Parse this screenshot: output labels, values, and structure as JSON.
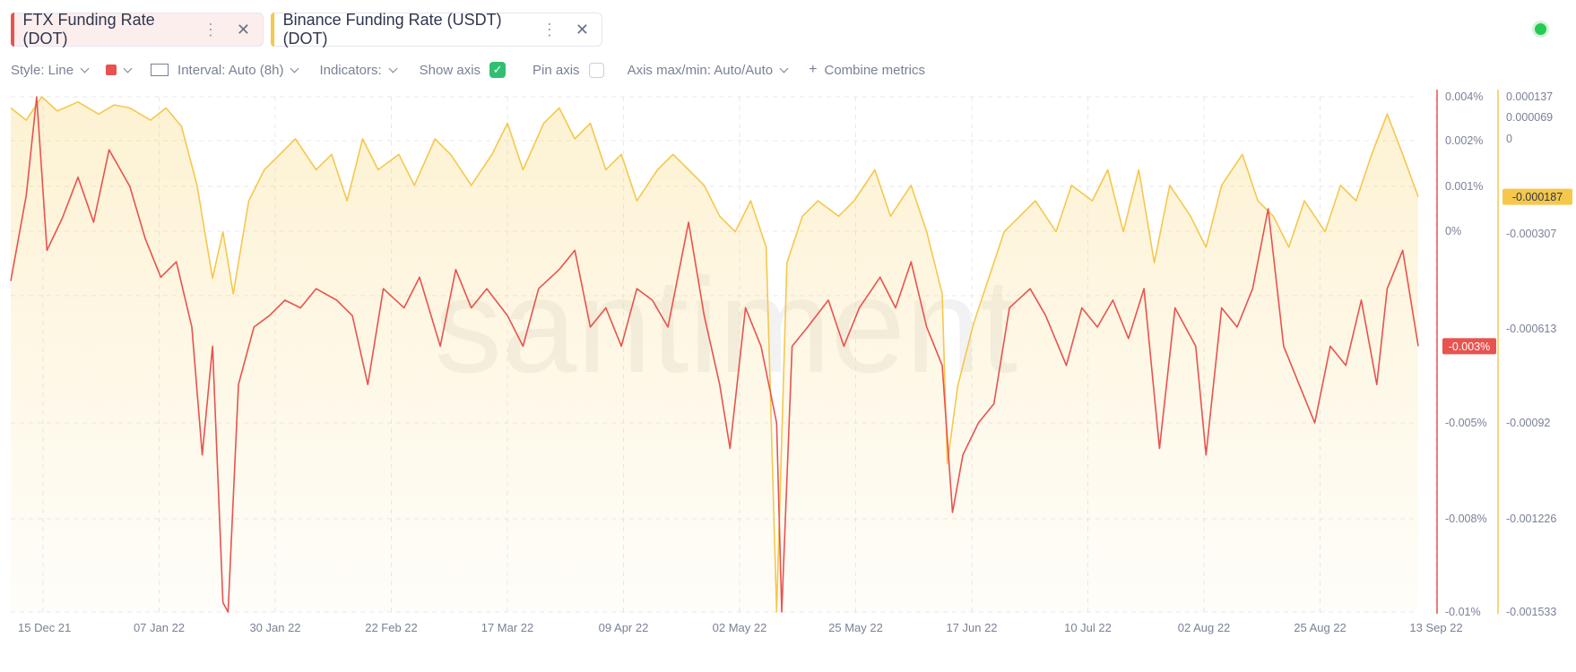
{
  "tabs": [
    {
      "label": "FTX Funding Rate (DOT)",
      "color": "#e8534f"
    },
    {
      "label": "Binance Funding Rate (USDT) (DOT)",
      "color": "#f5c84c"
    }
  ],
  "toolbar": {
    "style": "Style: Line",
    "interval": "Interval: Auto (8h)",
    "indicators": "Indicators:",
    "show_axis": "Show axis",
    "show_axis_checked": true,
    "pin_axis": "Pin axis",
    "pin_axis_checked": false,
    "axis_maxmin": "Axis max/min: Auto/Auto",
    "combine": "Combine metrics"
  },
  "watermark": "santiment",
  "chart_data": {
    "type": "line",
    "x_ticks": [
      "15 Dec 21",
      "07 Jan 22",
      "30 Jan 22",
      "22 Feb 22",
      "17 Mar 22",
      "09 Apr 22",
      "02 May 22",
      "25 May 22",
      "17 Jun 22",
      "10 Jul 22",
      "02 Aug 22",
      "25 Aug 22",
      "13 Sep 22"
    ],
    "x_range": [
      "2021-12-15",
      "2022-09-13"
    ],
    "y_left": {
      "ticks": [
        "0.004%",
        "0.002%",
        "0.001%",
        "0%",
        "-0.005%",
        "-0.008%",
        "-0.01%"
      ],
      "current": "-0.003%",
      "color": "#e8534f"
    },
    "y_right": {
      "ticks": [
        "0.000137",
        "0.000069",
        "0",
        "-0.000307",
        "-0.000613",
        "-0.00092",
        "-0.001226",
        "-0.001533"
      ],
      "current": "-0.000187",
      "color": "#f5c84c"
    },
    "series": [
      {
        "name": "FTX Funding Rate (DOT)",
        "color": "#e8534f",
        "unit": "%",
        "values": [
          [
            "2021-12-15",
            -0.0013
          ],
          [
            "2021-12-18",
            0.0008
          ],
          [
            "2021-12-20",
            0.004
          ],
          [
            "2021-12-22",
            -0.0005
          ],
          [
            "2021-12-25",
            0.0003
          ],
          [
            "2021-12-28",
            0.0012
          ],
          [
            "2021-12-31",
            0.0002
          ],
          [
            "2022-01-03",
            0.0018
          ],
          [
            "2022-01-07",
            0.001
          ],
          [
            "2022-01-10",
            -0.0002
          ],
          [
            "2022-01-13",
            -0.0012
          ],
          [
            "2022-01-16",
            -0.0008
          ],
          [
            "2022-01-19",
            -0.0025
          ],
          [
            "2022-01-21",
            -0.006
          ],
          [
            "2022-01-23",
            -0.003
          ],
          [
            "2022-01-25",
            -0.0098
          ],
          [
            "2022-01-26",
            -0.0115
          ],
          [
            "2022-01-28",
            -0.004
          ],
          [
            "2022-01-31",
            -0.0025
          ],
          [
            "2022-02-03",
            -0.0022
          ],
          [
            "2022-02-06",
            -0.0018
          ],
          [
            "2022-02-09",
            -0.002
          ],
          [
            "2022-02-12",
            -0.0015
          ],
          [
            "2022-02-16",
            -0.0018
          ],
          [
            "2022-02-19",
            -0.0022
          ],
          [
            "2022-02-22",
            -0.004
          ],
          [
            "2022-02-25",
            -0.0015
          ],
          [
            "2022-03-01",
            -0.002
          ],
          [
            "2022-03-04",
            -0.0012
          ],
          [
            "2022-03-08",
            -0.003
          ],
          [
            "2022-03-11",
            -0.001
          ],
          [
            "2022-03-14",
            -0.002
          ],
          [
            "2022-03-17",
            -0.0015
          ],
          [
            "2022-03-21",
            -0.0022
          ],
          [
            "2022-03-24",
            -0.003
          ],
          [
            "2022-03-27",
            -0.0015
          ],
          [
            "2022-03-31",
            -0.001
          ],
          [
            "2022-04-03",
            -0.0005
          ],
          [
            "2022-04-06",
            -0.0025
          ],
          [
            "2022-04-09",
            -0.002
          ],
          [
            "2022-04-12",
            -0.003
          ],
          [
            "2022-04-15",
            -0.0015
          ],
          [
            "2022-04-18",
            -0.0018
          ],
          [
            "2022-04-21",
            -0.0025
          ],
          [
            "2022-04-25",
            0.0002
          ],
          [
            "2022-04-28",
            -0.0022
          ],
          [
            "2022-05-01",
            -0.004
          ],
          [
            "2022-05-03",
            -0.0058
          ],
          [
            "2022-05-06",
            -0.002
          ],
          [
            "2022-05-09",
            -0.003
          ],
          [
            "2022-05-12",
            -0.005
          ],
          [
            "2022-05-13",
            -0.0108
          ],
          [
            "2022-05-15",
            -0.003
          ],
          [
            "2022-05-18",
            -0.0025
          ],
          [
            "2022-05-22",
            -0.0018
          ],
          [
            "2022-05-25",
            -0.003
          ],
          [
            "2022-05-28",
            -0.002
          ],
          [
            "2022-06-01",
            -0.0012
          ],
          [
            "2022-06-04",
            -0.002
          ],
          [
            "2022-06-07",
            -0.0008
          ],
          [
            "2022-06-10",
            -0.0025
          ],
          [
            "2022-06-13",
            -0.0035
          ],
          [
            "2022-06-15",
            -0.0078
          ],
          [
            "2022-06-17",
            -0.006
          ],
          [
            "2022-06-20",
            -0.005
          ],
          [
            "2022-06-23",
            -0.0045
          ],
          [
            "2022-06-26",
            -0.002
          ],
          [
            "2022-06-30",
            -0.0015
          ],
          [
            "2022-07-03",
            -0.0022
          ],
          [
            "2022-07-07",
            -0.0035
          ],
          [
            "2022-07-10",
            -0.002
          ],
          [
            "2022-07-13",
            -0.0025
          ],
          [
            "2022-07-16",
            -0.0018
          ],
          [
            "2022-07-19",
            -0.0028
          ],
          [
            "2022-07-22",
            -0.0015
          ],
          [
            "2022-07-25",
            -0.0058
          ],
          [
            "2022-07-28",
            -0.002
          ],
          [
            "2022-08-01",
            -0.003
          ],
          [
            "2022-08-03",
            -0.006
          ],
          [
            "2022-08-06",
            -0.002
          ],
          [
            "2022-08-09",
            -0.0025
          ],
          [
            "2022-08-12",
            -0.0015
          ],
          [
            "2022-08-15",
            0.0005
          ],
          [
            "2022-08-18",
            -0.003
          ],
          [
            "2022-08-21",
            -0.004
          ],
          [
            "2022-08-24",
            -0.005
          ],
          [
            "2022-08-27",
            -0.003
          ],
          [
            "2022-08-30",
            -0.0035
          ],
          [
            "2022-09-02",
            -0.0018
          ],
          [
            "2022-09-05",
            -0.004
          ],
          [
            "2022-09-07",
            -0.0015
          ],
          [
            "2022-09-10",
            -0.0005
          ],
          [
            "2022-09-13",
            -0.003
          ]
        ]
      },
      {
        "name": "Binance Funding Rate (USDT) (DOT)",
        "color": "#f5c84c",
        "unit": "",
        "values": [
          [
            "2021-12-15",
            0.0001
          ],
          [
            "2021-12-18",
            6e-05
          ],
          [
            "2021-12-21",
            0.000137
          ],
          [
            "2021-12-24",
            9e-05
          ],
          [
            "2021-12-28",
            0.00012
          ],
          [
            "2022-01-01",
            8e-05
          ],
          [
            "2022-01-04",
            0.00011
          ],
          [
            "2022-01-07",
            0.0001
          ],
          [
            "2022-01-11",
            6e-05
          ],
          [
            "2022-01-14",
            0.0001
          ],
          [
            "2022-01-17",
            4e-05
          ],
          [
            "2022-01-20",
            -0.00015
          ],
          [
            "2022-01-23",
            -0.00045
          ],
          [
            "2022-01-25",
            -0.0003
          ],
          [
            "2022-01-27",
            -0.0005
          ],
          [
            "2022-01-30",
            -0.0002
          ],
          [
            "2022-02-02",
            -0.0001
          ],
          [
            "2022-02-05",
            -5e-05
          ],
          [
            "2022-02-08",
            0.0
          ],
          [
            "2022-02-12",
            -0.0001
          ],
          [
            "2022-02-15",
            -5e-05
          ],
          [
            "2022-02-18",
            -0.0002
          ],
          [
            "2022-02-21",
            0.0
          ],
          [
            "2022-02-24",
            -0.0001
          ],
          [
            "2022-02-28",
            -5e-05
          ],
          [
            "2022-03-03",
            -0.00015
          ],
          [
            "2022-03-07",
            0.0
          ],
          [
            "2022-03-10",
            -5e-05
          ],
          [
            "2022-03-14",
            -0.00015
          ],
          [
            "2022-03-18",
            -5e-05
          ],
          [
            "2022-03-21",
            5e-05
          ],
          [
            "2022-03-24",
            -0.0001
          ],
          [
            "2022-03-28",
            5e-05
          ],
          [
            "2022-03-31",
            0.0001
          ],
          [
            "2022-04-03",
            0.0
          ],
          [
            "2022-04-06",
            5e-05
          ],
          [
            "2022-04-09",
            -0.0001
          ],
          [
            "2022-04-12",
            -5e-05
          ],
          [
            "2022-04-15",
            -0.0002
          ],
          [
            "2022-04-19",
            -0.0001
          ],
          [
            "2022-04-22",
            -5e-05
          ],
          [
            "2022-04-25",
            -0.0001
          ],
          [
            "2022-04-28",
            -0.00015
          ],
          [
            "2022-05-01",
            -0.00025
          ],
          [
            "2022-05-04",
            -0.0003
          ],
          [
            "2022-05-07",
            -0.0002
          ],
          [
            "2022-05-10",
            -0.00035
          ],
          [
            "2022-05-12",
            -0.001533
          ],
          [
            "2022-05-14",
            -0.0004
          ],
          [
            "2022-05-17",
            -0.00025
          ],
          [
            "2022-05-20",
            -0.0002
          ],
          [
            "2022-05-24",
            -0.00025
          ],
          [
            "2022-05-27",
            -0.0002
          ],
          [
            "2022-05-31",
            -0.0001
          ],
          [
            "2022-06-03",
            -0.00025
          ],
          [
            "2022-06-07",
            -0.00015
          ],
          [
            "2022-06-10",
            -0.0003
          ],
          [
            "2022-06-13",
            -0.0005
          ],
          [
            "2022-06-14",
            -0.00105
          ],
          [
            "2022-06-16",
            -0.0008
          ],
          [
            "2022-06-19",
            -0.0006
          ],
          [
            "2022-06-22",
            -0.00045
          ],
          [
            "2022-06-25",
            -0.0003
          ],
          [
            "2022-06-28",
            -0.00025
          ],
          [
            "2022-07-01",
            -0.0002
          ],
          [
            "2022-07-05",
            -0.0003
          ],
          [
            "2022-07-08",
            -0.00015
          ],
          [
            "2022-07-12",
            -0.0002
          ],
          [
            "2022-07-15",
            -0.0001
          ],
          [
            "2022-07-18",
            -0.0003
          ],
          [
            "2022-07-21",
            -0.0001
          ],
          [
            "2022-07-24",
            -0.0004
          ],
          [
            "2022-07-27",
            -0.00015
          ],
          [
            "2022-07-31",
            -0.00025
          ],
          [
            "2022-08-03",
            -0.00035
          ],
          [
            "2022-08-06",
            -0.00015
          ],
          [
            "2022-08-10",
            -5e-05
          ],
          [
            "2022-08-13",
            -0.0002
          ],
          [
            "2022-08-16",
            -0.00025
          ],
          [
            "2022-08-19",
            -0.00035
          ],
          [
            "2022-08-22",
            -0.0002
          ],
          [
            "2022-08-26",
            -0.0003
          ],
          [
            "2022-08-29",
            -0.00015
          ],
          [
            "2022-09-01",
            -0.0002
          ],
          [
            "2022-09-04",
            -5e-05
          ],
          [
            "2022-09-07",
            8e-05
          ],
          [
            "2022-09-10",
            -5e-05
          ],
          [
            "2022-09-13",
            -0.000187
          ]
        ]
      }
    ]
  }
}
